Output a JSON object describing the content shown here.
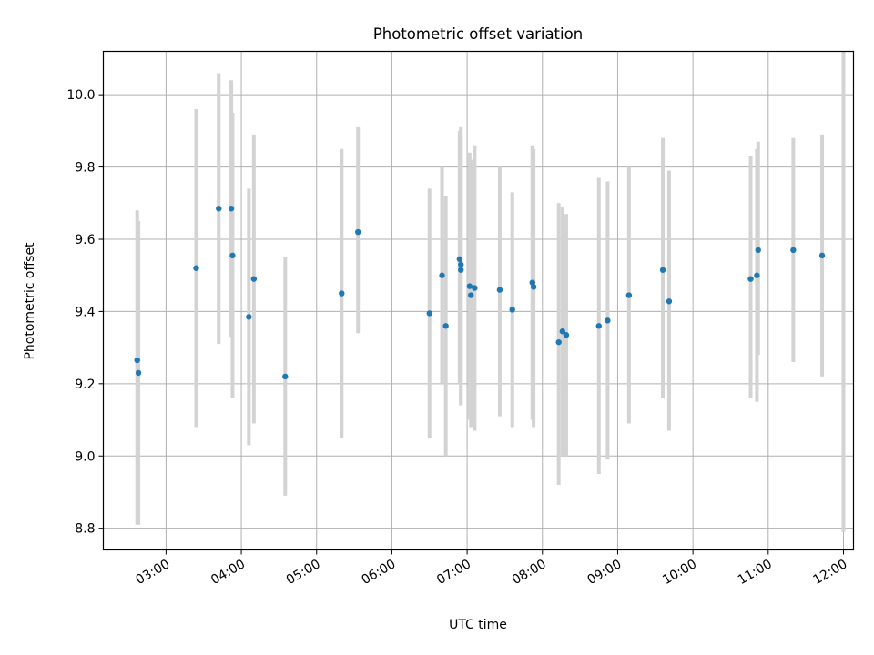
{
  "chart_data": {
    "type": "scatter",
    "title": "Photometric offset variation",
    "xlabel": "UTC time",
    "ylabel": "Photometric offset",
    "xlim": [
      "02:10",
      "12:08"
    ],
    "ylim": [
      8.74,
      10.12
    ],
    "grid": true,
    "x_ticks": [
      "03:00",
      "04:00",
      "05:00",
      "06:00",
      "07:00",
      "08:00",
      "09:00",
      "10:00",
      "11:00",
      "12:00"
    ],
    "y_ticks": [
      8.8,
      9.0,
      9.2,
      9.4,
      9.6,
      9.8,
      10.0
    ],
    "y_tick_labels": [
      "8.8",
      "9.0",
      "9.2",
      "9.4",
      "9.6",
      "9.8",
      "10.0"
    ],
    "colors": {
      "marker": "#1f77b4",
      "errorbar": "#d3d3d3",
      "grid": "#b0b0b0"
    },
    "points": [
      {
        "x": "02:37",
        "y": 9.265,
        "low": 8.81,
        "high": 9.68
      },
      {
        "x": "02:38",
        "y": 9.23,
        "low": 8.81,
        "high": 9.65
      },
      {
        "x": "03:24",
        "y": 9.52,
        "low": 9.08,
        "high": 9.96
      },
      {
        "x": "03:42",
        "y": 9.685,
        "low": 9.31,
        "high": 10.06
      },
      {
        "x": "03:52",
        "y": 9.685,
        "low": 9.33,
        "high": 10.04
      },
      {
        "x": "03:53",
        "y": 9.555,
        "low": 9.16,
        "high": 9.95
      },
      {
        "x": "04:06",
        "y": 9.385,
        "low": 9.03,
        "high": 9.74
      },
      {
        "x": "04:10",
        "y": 9.49,
        "low": 9.09,
        "high": 9.89
      },
      {
        "x": "04:35",
        "y": 9.22,
        "low": 8.89,
        "high": 9.55
      },
      {
        "x": "05:20",
        "y": 9.45,
        "low": 9.05,
        "high": 9.85
      },
      {
        "x": "05:33",
        "y": 9.62,
        "low": 9.34,
        "high": 9.91
      },
      {
        "x": "06:30",
        "y": 9.395,
        "low": 9.05,
        "high": 9.74
      },
      {
        "x": "06:40",
        "y": 9.5,
        "low": 9.2,
        "high": 9.8
      },
      {
        "x": "06:43",
        "y": 9.36,
        "low": 9.0,
        "high": 9.72
      },
      {
        "x": "06:54",
        "y": 9.545,
        "low": 9.2,
        "high": 9.9
      },
      {
        "x": "06:55",
        "y": 9.53,
        "low": 9.15,
        "high": 9.91
      },
      {
        "x": "06:55",
        "y": 9.515,
        "low": 9.14,
        "high": 9.89
      },
      {
        "x": "07:02",
        "y": 9.47,
        "low": 9.1,
        "high": 9.84
      },
      {
        "x": "07:03",
        "y": 9.445,
        "low": 9.08,
        "high": 9.82
      },
      {
        "x": "07:06",
        "y": 9.465,
        "low": 9.07,
        "high": 9.86
      },
      {
        "x": "07:26",
        "y": 9.46,
        "low": 9.11,
        "high": 9.8
      },
      {
        "x": "07:36",
        "y": 9.405,
        "low": 9.08,
        "high": 9.73
      },
      {
        "x": "07:52",
        "y": 9.48,
        "low": 9.1,
        "high": 9.86
      },
      {
        "x": "07:53",
        "y": 9.468,
        "low": 9.08,
        "high": 9.85
      },
      {
        "x": "08:13",
        "y": 9.315,
        "low": 8.92,
        "high": 9.7
      },
      {
        "x": "08:16",
        "y": 9.345,
        "low": 9.0,
        "high": 9.69
      },
      {
        "x": "08:19",
        "y": 9.335,
        "low": 9.0,
        "high": 9.67
      },
      {
        "x": "08:45",
        "y": 9.36,
        "low": 8.95,
        "high": 9.77
      },
      {
        "x": "08:52",
        "y": 9.375,
        "low": 8.99,
        "high": 9.76
      },
      {
        "x": "09:09",
        "y": 9.445,
        "low": 9.09,
        "high": 9.8
      },
      {
        "x": "09:36",
        "y": 9.515,
        "low": 9.16,
        "high": 9.88
      },
      {
        "x": "09:41",
        "y": 9.428,
        "low": 9.07,
        "high": 9.79
      },
      {
        "x": "10:46",
        "y": 9.49,
        "low": 9.16,
        "high": 9.83
      },
      {
        "x": "10:51",
        "y": 9.5,
        "low": 9.15,
        "high": 9.85
      },
      {
        "x": "10:52",
        "y": 9.57,
        "low": 9.28,
        "high": 9.87
      },
      {
        "x": "11:20",
        "y": 9.57,
        "low": 9.26,
        "high": 9.88
      },
      {
        "x": "11:43",
        "y": 9.555,
        "low": 9.22,
        "high": 9.89
      },
      {
        "x": "12:00",
        "y": null,
        "low": 8.79,
        "high": 10.12
      }
    ]
  }
}
